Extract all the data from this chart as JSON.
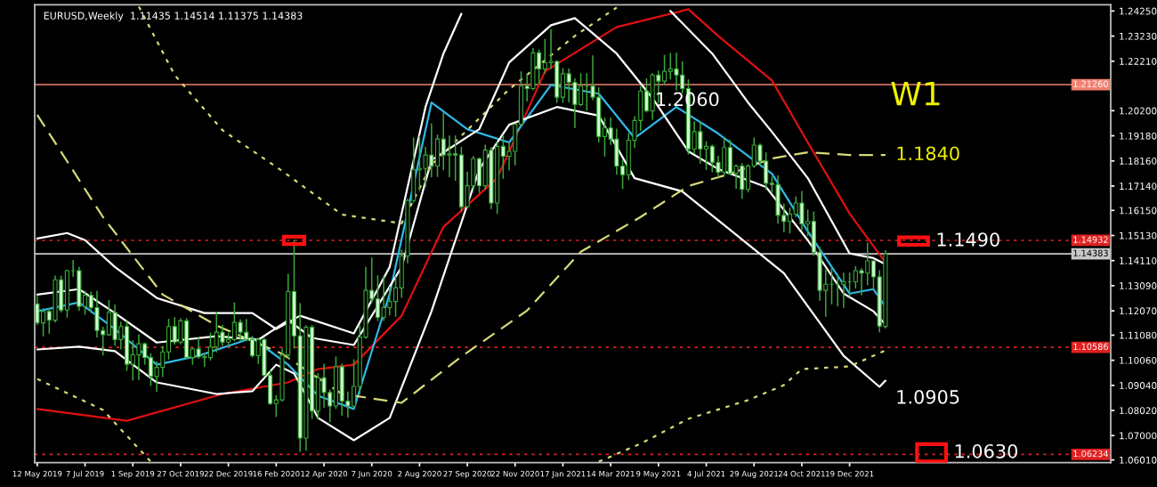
{
  "chart_data": {
    "type": "candlestick",
    "title": "EURUSD,Weekly  1.11435 1.14514 1.11375 1.14383",
    "colors": [
      "#ccffcc",
      "#000000",
      "#ccffcc",
      "#000000",
      "#ccffcc",
      "#000000",
      "#3aa63a",
      "#ccffcc",
      "#000000",
      "#ccffcc",
      "#ccffcc",
      "#ccffcc",
      "#000000",
      "#ccffcc",
      "#000000",
      "#ccffcc",
      "#000000",
      "#000000",
      "#ccffcc",
      "#ccffcc",
      "#000000",
      "#000000",
      "#000000",
      "#ccffcc",
      "#000000",
      "#ccffcc",
      "#000000",
      "#ccffcc",
      "#ccffcc",
      "#000000",
      "#000000",
      "#ccffcc",
      "#000000",
      "#000000",
      "#ccffcc",
      "#ccffcc",
      "#ccffcc",
      "#000000",
      "#ccffcc",
      "#ccffcc",
      "#000000",
      "#000000",
      "#000000",
      "#ccffcc",
      "#ccffcc",
      "#000000",
      "#ccffcc",
      "#000000",
      "#ccffcc",
      "#ccffcc",
      "#000000",
      "#ccffcc",
      "#ccffcc",
      "#000000",
      "#000000",
      "#000000",
      "#ccffcc",
      "#ccffcc",
      "#000000",
      "#000000",
      "#000000",
      "#000000",
      "#000000",
      "#000000",
      "#000000",
      "#000000",
      "#ccffcc",
      "#000000",
      "#ccffcc",
      "#000000",
      "#ccffcc",
      "#ccffcc",
      "#000000",
      "#000000",
      "#ccffcc",
      "#000000",
      "#ccffcc",
      "#000000",
      "#ccffcc",
      "#000000",
      "#000000",
      "#000000",
      "#ccffcc",
      "#000000",
      "#ccffcc",
      "#000000",
      "#000000",
      "#ccffcc",
      "#000000",
      "#ccffcc",
      "#ccffcc",
      "#000000",
      "#3aa63a",
      "#ccffcc",
      "#ccffcc",
      "#000000",
      "#ccffcc",
      "#ccffcc",
      "#ccffcc",
      "#000000",
      "#000000",
      "#000000",
      "#ccffcc",
      "#000000",
      "#ccffcc",
      "#000000",
      "#000000",
      "#ccffcc",
      "#ccffcc",
      "#ccffcc",
      "#000000",
      "#ccffcc",
      "#000000",
      "#ccffcc",
      "#ccffcc",
      "#000000",
      "#ccffcc",
      "#000000",
      "#ccffcc",
      "#000000",
      "#000000",
      "#ccffcc",
      "#ccffcc",
      "#ccffcc",
      "#ccffcc",
      "#ccffcc",
      "#000000",
      "#000000",
      "#ccffcc",
      "#000000",
      "#ccffcc",
      "#ccffcc",
      "#000000",
      "#3aa63a",
      "#3aa63a",
      "#000000",
      "#3aa63a",
      "#000000",
      "#ccffcc",
      "#000000",
      "#ccffcc",
      "#ccffcc",
      "#000000"
    ],
    "x": [
      "2019-05-12",
      "2019-05-19",
      "2019-05-26",
      "2019-06-02",
      "2019-06-09",
      "2019-06-16",
      "2019-06-23",
      "2019-06-30",
      "2019-07-07",
      "2019-07-14",
      "2019-07-21",
      "2019-07-28",
      "2019-08-04",
      "2019-08-11",
      "2019-08-18",
      "2019-08-25",
      "2019-09-01",
      "2019-09-08",
      "2019-09-15",
      "2019-09-22",
      "2019-09-29",
      "2019-10-06",
      "2019-10-13",
      "2019-10-20",
      "2019-10-27",
      "2019-11-03",
      "2019-11-10",
      "2019-11-17",
      "2019-11-24",
      "2019-12-01",
      "2019-12-08",
      "2019-12-15",
      "2019-12-22",
      "2019-12-29",
      "2020-01-05",
      "2020-01-12",
      "2020-01-19",
      "2020-01-26",
      "2020-02-02",
      "2020-02-09",
      "2020-02-16",
      "2020-02-23",
      "2020-03-01",
      "2020-03-08",
      "2020-03-15",
      "2020-03-22",
      "2020-03-29",
      "2020-04-05",
      "2020-04-12",
      "2020-04-19",
      "2020-04-26",
      "2020-05-03",
      "2020-05-10",
      "2020-05-17",
      "2020-05-24",
      "2020-05-31",
      "2020-06-07",
      "2020-06-14",
      "2020-06-21",
      "2020-06-28",
      "2020-07-05",
      "2020-07-12",
      "2020-07-19",
      "2020-07-26",
      "2020-08-02",
      "2020-08-09",
      "2020-08-16",
      "2020-08-23",
      "2020-08-30",
      "2020-09-06",
      "2020-09-13",
      "2020-09-20",
      "2020-09-27",
      "2020-10-04",
      "2020-10-11",
      "2020-10-18",
      "2020-10-25",
      "2020-11-01",
      "2020-11-08",
      "2020-11-15",
      "2020-11-22",
      "2020-11-29",
      "2020-12-06",
      "2020-12-13",
      "2020-12-20",
      "2020-12-27",
      "2021-01-03",
      "2021-01-10",
      "2021-01-17",
      "2021-01-24",
      "2021-01-31",
      "2021-02-07",
      "2021-02-14",
      "2021-02-21",
      "2021-02-28",
      "2021-03-07",
      "2021-03-14",
      "2021-03-21",
      "2021-03-28",
      "2021-04-04",
      "2021-04-11",
      "2021-04-18",
      "2021-04-25",
      "2021-05-02",
      "2021-05-09",
      "2021-05-16",
      "2021-05-23",
      "2021-05-30",
      "2021-06-06",
      "2021-06-13",
      "2021-06-20",
      "2021-06-27",
      "2021-07-04",
      "2021-07-11",
      "2021-07-18",
      "2021-07-25",
      "2021-08-01",
      "2021-08-08",
      "2021-08-15",
      "2021-08-22",
      "2021-08-29",
      "2021-09-05",
      "2021-09-12",
      "2021-09-19",
      "2021-09-26",
      "2021-10-03",
      "2021-10-10",
      "2021-10-17",
      "2021-10-24",
      "2021-10-31",
      "2021-11-07",
      "2021-11-14",
      "2021-11-21",
      "2021-11-28",
      "2021-12-05",
      "2021-12-12",
      "2021-12-19",
      "2021-12-26",
      "2022-01-02",
      "2022-01-09",
      "2022-01-16",
      "2022-01-23",
      "2022-01-30"
    ],
    "ohlc": [
      [
        1.1235,
        1.1265,
        1.115,
        1.1158
      ],
      [
        1.1158,
        1.1215,
        1.1105,
        1.1204
      ],
      [
        1.1204,
        1.1215,
        1.1116,
        1.1169
      ],
      [
        1.1169,
        1.1348,
        1.1161,
        1.1333
      ],
      [
        1.1333,
        1.1347,
        1.1202,
        1.121
      ],
      [
        1.121,
        1.1372,
        1.1181,
        1.137
      ],
      [
        1.137,
        1.1412,
        1.1347,
        1.137
      ],
      [
        1.137,
        1.1384,
        1.1208,
        1.1225
      ],
      [
        1.1225,
        1.1286,
        1.1193,
        1.127
      ],
      [
        1.127,
        1.1282,
        1.12,
        1.122
      ],
      [
        1.122,
        1.1286,
        1.1101,
        1.1127
      ],
      [
        1.1127,
        1.114,
        1.1027,
        1.111
      ],
      [
        1.111,
        1.1249,
        1.1107,
        1.12
      ],
      [
        1.12,
        1.123,
        1.1066,
        1.109
      ],
      [
        1.109,
        1.116,
        1.1052,
        1.1143
      ],
      [
        1.1143,
        1.1164,
        1.0965,
        1.099
      ],
      [
        1.099,
        1.1085,
        1.0926,
        1.1028
      ],
      [
        1.1028,
        1.1109,
        1.0927,
        1.1073
      ],
      [
        1.1073,
        1.1075,
        1.099,
        1.1017
      ],
      [
        1.1017,
        1.1032,
        1.0904,
        1.094
      ],
      [
        1.094,
        1.0999,
        1.0879,
        1.0977
      ],
      [
        1.0977,
        1.1062,
        1.094,
        1.104
      ],
      [
        1.104,
        1.1172,
        1.1011,
        1.1143
      ],
      [
        1.1143,
        1.1179,
        1.1072,
        1.108
      ],
      [
        1.108,
        1.1175,
        1.1073,
        1.1166
      ],
      [
        1.1166,
        1.1176,
        1.1014,
        1.1017
      ],
      [
        1.1017,
        1.1055,
        1.0989,
        1.1052
      ],
      [
        1.1052,
        1.1097,
        1.1015,
        1.102
      ],
      [
        1.102,
        1.1032,
        1.0981,
        1.1017
      ],
      [
        1.1017,
        1.1117,
        1.1007,
        1.106
      ],
      [
        1.106,
        1.12,
        1.104,
        1.112
      ],
      [
        1.112,
        1.1148,
        1.1066,
        1.108
      ],
      [
        1.108,
        1.1115,
        1.1064,
        1.109
      ],
      [
        1.109,
        1.1239,
        1.1085,
        1.116
      ],
      [
        1.116,
        1.117,
        1.1085,
        1.112
      ],
      [
        1.112,
        1.1172,
        1.1086,
        1.109
      ],
      [
        1.109,
        1.1102,
        1.1019,
        1.1025
      ],
      [
        1.1025,
        1.1096,
        1.0992,
        1.109
      ],
      [
        1.109,
        1.1095,
        1.0942,
        1.0945
      ],
      [
        1.0945,
        1.0964,
        1.0827,
        1.083
      ],
      [
        1.083,
        1.0863,
        1.0778,
        1.0845
      ],
      [
        1.0845,
        1.1053,
        1.084,
        1.1027
      ],
      [
        1.1027,
        1.1355,
        1.1014,
        1.1285
      ],
      [
        1.1285,
        1.1493,
        1.1055,
        1.1105
      ],
      [
        1.1105,
        1.1236,
        1.0636,
        1.069
      ],
      [
        1.069,
        1.1147,
        1.064,
        1.114
      ],
      [
        1.114,
        1.1147,
        1.077,
        1.08
      ],
      [
        1.08,
        1.0952,
        1.0768,
        1.0935
      ],
      [
        1.0935,
        1.099,
        1.0815,
        1.0875
      ],
      [
        1.0875,
        1.0885,
        1.0756,
        1.082
      ],
      [
        1.082,
        1.1019,
        1.081,
        1.098
      ],
      [
        1.098,
        1.099,
        1.0782,
        1.084
      ],
      [
        1.084,
        1.0877,
        1.0775,
        1.082
      ],
      [
        1.082,
        1.1008,
        1.0812,
        1.09
      ],
      [
        1.09,
        1.1146,
        1.087,
        1.11
      ],
      [
        1.11,
        1.1384,
        1.1095,
        1.129
      ],
      [
        1.129,
        1.1422,
        1.124,
        1.1255
      ],
      [
        1.1255,
        1.1349,
        1.1168,
        1.118
      ],
      [
        1.118,
        1.1349,
        1.1168,
        1.122
      ],
      [
        1.122,
        1.1303,
        1.119,
        1.1245
      ],
      [
        1.1245,
        1.1345,
        1.1185,
        1.13
      ],
      [
        1.13,
        1.1452,
        1.1262,
        1.143
      ],
      [
        1.143,
        1.166,
        1.1402,
        1.1655
      ],
      [
        1.1655,
        1.1909,
        1.1649,
        1.178
      ],
      [
        1.178,
        1.1916,
        1.1696,
        1.1785
      ],
      [
        1.1785,
        1.1871,
        1.1711,
        1.184
      ],
      [
        1.184,
        1.1966,
        1.1752,
        1.1795
      ],
      [
        1.1795,
        1.1921,
        1.1753,
        1.1905
      ],
      [
        1.1905,
        1.2011,
        1.178,
        1.184
      ],
      [
        1.184,
        1.1917,
        1.1752,
        1.1845
      ],
      [
        1.1845,
        1.1917,
        1.1737,
        1.184
      ],
      [
        1.184,
        1.1871,
        1.1612,
        1.163
      ],
      [
        1.163,
        1.177,
        1.1625,
        1.1715
      ],
      [
        1.1715,
        1.1834,
        1.1697,
        1.1825
      ],
      [
        1.1825,
        1.1828,
        1.1688,
        1.1715
      ],
      [
        1.1715,
        1.188,
        1.17,
        1.186
      ],
      [
        1.186,
        1.187,
        1.1622,
        1.1645
      ],
      [
        1.1645,
        1.1891,
        1.1603,
        1.1875
      ],
      [
        1.1875,
        1.192,
        1.1745,
        1.1835
      ],
      [
        1.1835,
        1.189,
        1.178,
        1.1855
      ],
      [
        1.1855,
        1.1965,
        1.18,
        1.1965
      ],
      [
        1.1965,
        1.2178,
        1.196,
        1.212
      ],
      [
        1.212,
        1.2168,
        1.2059,
        1.211
      ],
      [
        1.211,
        1.2273,
        1.2105,
        1.2255
      ],
      [
        1.2255,
        1.2265,
        1.213,
        1.219
      ],
      [
        1.219,
        1.231,
        1.2172,
        1.2215
      ],
      [
        1.2215,
        1.2349,
        1.2191,
        1.222
      ],
      [
        1.222,
        1.2223,
        1.2054,
        1.2075
      ],
      [
        1.2075,
        1.219,
        1.2055,
        1.217
      ],
      [
        1.217,
        1.2189,
        1.2056,
        1.2135
      ],
      [
        1.2135,
        1.215,
        1.1952,
        1.2045
      ],
      [
        1.2045,
        1.217,
        1.204,
        1.212
      ],
      [
        1.212,
        1.217,
        1.2022,
        1.212
      ],
      [
        1.212,
        1.2243,
        1.2065,
        1.2075
      ],
      [
        1.2075,
        1.2113,
        1.1893,
        1.1915
      ],
      [
        1.1915,
        1.199,
        1.1836,
        1.195
      ],
      [
        1.195,
        1.199,
        1.1883,
        1.1905
      ],
      [
        1.1905,
        1.1945,
        1.1762,
        1.1795
      ],
      [
        1.1795,
        1.182,
        1.1704,
        1.176
      ],
      [
        1.176,
        1.1927,
        1.174,
        1.19
      ],
      [
        1.19,
        1.1995,
        1.187,
        1.198
      ],
      [
        1.198,
        1.2117,
        1.194,
        1.21
      ],
      [
        1.21,
        1.215,
        1.2015,
        1.202
      ],
      [
        1.202,
        1.217,
        1.1985,
        1.2165
      ],
      [
        1.2165,
        1.2181,
        1.2052,
        1.214
      ],
      [
        1.214,
        1.2245,
        1.213,
        1.218
      ],
      [
        1.218,
        1.2253,
        1.215,
        1.219
      ],
      [
        1.219,
        1.2254,
        1.2104,
        1.2165
      ],
      [
        1.2165,
        1.2218,
        1.2093,
        1.211
      ],
      [
        1.211,
        1.2145,
        1.1844,
        1.1865
      ],
      [
        1.1865,
        1.1975,
        1.1847,
        1.1935
      ],
      [
        1.1935,
        1.1975,
        1.1807,
        1.1865
      ],
      [
        1.1865,
        1.1895,
        1.1782,
        1.1875
      ],
      [
        1.1875,
        1.188,
        1.1772,
        1.181
      ],
      [
        1.181,
        1.1835,
        1.1752,
        1.177
      ],
      [
        1.177,
        1.1909,
        1.1755,
        1.187
      ],
      [
        1.187,
        1.19,
        1.176,
        1.1765
      ],
      [
        1.1765,
        1.18,
        1.1705,
        1.1795
      ],
      [
        1.1795,
        1.1805,
        1.1664,
        1.17
      ],
      [
        1.17,
        1.18,
        1.169,
        1.1795
      ],
      [
        1.1795,
        1.1909,
        1.179,
        1.188
      ],
      [
        1.188,
        1.1885,
        1.18,
        1.1815
      ],
      [
        1.1815,
        1.1848,
        1.17,
        1.1725
      ],
      [
        1.1725,
        1.175,
        1.1685,
        1.172
      ],
      [
        1.172,
        1.1755,
        1.1563,
        1.1595
      ],
      [
        1.1595,
        1.164,
        1.1529,
        1.157
      ],
      [
        1.157,
        1.1624,
        1.1523,
        1.16
      ],
      [
        1.16,
        1.1669,
        1.159,
        1.1645
      ],
      [
        1.1645,
        1.1692,
        1.1535,
        1.156
      ],
      [
        1.156,
        1.1616,
        1.1513,
        1.157
      ],
      [
        1.157,
        1.1608,
        1.1432,
        1.1445
      ],
      [
        1.1445,
        1.1465,
        1.125,
        1.129
      ],
      [
        1.129,
        1.1374,
        1.1185,
        1.1315
      ],
      [
        1.1315,
        1.1383,
        1.1235,
        1.1315
      ],
      [
        1.1315,
        1.1355,
        1.1227,
        1.1315
      ],
      [
        1.1315,
        1.136,
        1.1221,
        1.1325
      ],
      [
        1.1325,
        1.136,
        1.1265,
        1.1325
      ],
      [
        1.1325,
        1.1386,
        1.13,
        1.137
      ],
      [
        1.137,
        1.1378,
        1.1272,
        1.136
      ],
      [
        1.136,
        1.1483,
        1.1313,
        1.141
      ],
      [
        1.141,
        1.141,
        1.129,
        1.1345
      ],
      [
        1.1345,
        1.137,
        1.1121,
        1.1145
      ],
      [
        1.11435,
        1.14514,
        1.11375,
        1.14383
      ]
    ],
    "series": [
      {
        "type": "line",
        "color": "#e01010",
        "line_style": "solid",
        "x": [
          "2019-05-12",
          "2019-08-25",
          "2019-12-15",
          "2020-03-01",
          "2020-04-05",
          "2020-05-17",
          "2020-07-12",
          "2020-08-30",
          "2020-11-01",
          "2020-12-27",
          "2021-03-21",
          "2021-06-13",
          "2021-07-18",
          "2021-09-19",
          "2021-10-31",
          "2021-12-19",
          "2022-01-30"
        ],
        "values": [
          1.0808,
          1.076,
          1.0869,
          1.0916,
          1.097,
          1.0988,
          1.1187,
          1.1548,
          1.1746,
          1.218,
          1.236,
          1.2432,
          1.2324,
          1.2143,
          1.1891,
          1.1602,
          1.1403
        ]
      },
      {
        "type": "line",
        "color": "#30b8e8",
        "line_style": "solid",
        "x": [
          "2019-05-12",
          "2019-06-30",
          "2019-08-11",
          "2019-09-29",
          "2019-11-17",
          "2020-01-19",
          "2020-03-01",
          "2020-04-05",
          "2020-05-17",
          "2020-06-28",
          "2020-08-16",
          "2020-09-27",
          "2020-11-15",
          "2021-01-03",
          "2021-02-28",
          "2021-04-11",
          "2021-05-30",
          "2021-07-18",
          "2021-09-19",
          "2021-10-31",
          "2021-12-19",
          "2022-01-16",
          "2022-01-30"
        ],
        "values": [
          1.1205,
          1.1241,
          1.1133,
          1.0988,
          1.1024,
          1.1097,
          1.0988,
          1.0862,
          1.0808,
          1.1277,
          1.2053,
          1.1945,
          1.1891,
          1.2125,
          1.2089,
          1.1909,
          1.2035,
          1.1927,
          1.1764,
          1.153,
          1.1277,
          1.1295,
          1.1223
        ]
      },
      {
        "type": "line",
        "color": "#ffffff",
        "line_style": "solid",
        "x": [
          "2019-05-12",
          "2019-06-16",
          "2019-07-07",
          "2019-08-11",
          "2019-09-29",
          "2019-11-24",
          "2020-01-19",
          "2020-02-16",
          "2020-03-15",
          "2020-05-17",
          "2020-06-28",
          "2020-08-09",
          "2020-08-30",
          "2020-09-20",
          "2020-12-27",
          "2021-05-23",
          "2021-07-11",
          "2021-08-22",
          "2021-09-19",
          "2021-10-31",
          "2021-12-19",
          "2022-01-16",
          "2022-01-30"
        ],
        "values": [
          1.1501,
          1.1523,
          1.1494,
          1.1385,
          1.1259,
          1.1198,
          1.1198,
          1.1133,
          1.1187,
          1.1115,
          1.1385,
          1.2035,
          1.2252,
          1.2414,
          null,
          1.2425,
          1.2252,
          1.2053,
          1.1934,
          1.1746,
          1.144,
          1.1421,
          1.1396
        ]
      },
      {
        "type": "line",
        "color": "#ffffff",
        "line_style": "solid",
        "x": [
          "2019-05-12",
          "2019-06-30",
          "2019-08-11",
          "2019-09-29",
          "2019-12-08",
          "2020-01-26",
          "2020-03-01",
          "2020-03-29",
          "2020-05-17",
          "2020-07-12",
          "2020-08-16",
          "2020-10-11",
          "2020-11-15",
          "2021-01-03",
          "2021-01-31",
          "2021-03-21",
          "2021-05-02",
          "2021-06-13",
          "2021-07-18",
          "2021-09-12",
          "2021-10-31",
          "2021-12-12",
          "2022-01-16",
          "2022-01-30"
        ],
        "values": [
          1.1273,
          1.1295,
          1.1198,
          1.1078,
          1.1104,
          1.1089,
          1.1169,
          1.1097,
          1.1068,
          1.1385,
          1.1819,
          1.1945,
          1.2216,
          1.2367,
          1.2396,
          1.2252,
          1.2071,
          1.1855,
          1.1783,
          1.171,
          1.1494,
          1.1277,
          1.1205,
          1.1151
        ]
      },
      {
        "type": "line",
        "color": "#ffffff",
        "line_style": "solid",
        "x": [
          "2019-05-12",
          "2019-06-30",
          "2019-08-11",
          "2019-09-29",
          "2019-12-08",
          "2020-01-19",
          "2020-02-16",
          "2020-03-08",
          "2020-04-05",
          "2020-05-17",
          "2020-06-28",
          "2020-08-16",
          "2020-10-11",
          "2020-11-15",
          "2021-01-10",
          "2021-02-28",
          "2021-04-11",
          "2021-06-06",
          "2021-10-03",
          "2021-12-12",
          "2022-01-23",
          "2022-01-30"
        ],
        "values": [
          1.105,
          1.1061,
          1.1043,
          1.0916,
          1.0869,
          1.088,
          1.0988,
          1.0952,
          1.0772,
          1.0681,
          1.0772,
          1.1205,
          1.1782,
          1.1963,
          1.2035,
          1.2,
          1.1746,
          1.1692,
          1.136,
          1.1024,
          1.0898,
          1.0923
        ]
      },
      {
        "type": "line",
        "color": "#d8d878",
        "line_style": "dashed",
        "x": [
          "2019-05-12",
          "2019-07-28",
          "2019-10-06",
          "2019-12-08",
          "2020-02-23",
          "2020-05-03",
          "2020-07-12",
          "2020-09-20",
          "2020-12-06",
          "2021-02-07",
          "2021-04-18",
          "2021-06-13",
          "2021-08-01",
          "2021-09-19",
          "2021-10-31",
          "2021-12-19",
          "2022-01-30"
        ],
        "values": [
          1.2003,
          1.1588,
          1.1273,
          1.1147,
          1.1032,
          1.0869,
          1.0833,
          1.1021,
          1.1208,
          1.1447,
          1.1588,
          1.1714,
          1.1764,
          1.1826,
          1.1851,
          1.184,
          1.184
        ]
      },
      {
        "type": "line",
        "color": "#d8d878",
        "line_style": "dotted",
        "x": [
          "2019-09-08",
          "2019-10-20",
          "2019-12-15",
          "2020-02-23",
          "2020-05-03",
          "2020-07-12",
          "2020-08-16",
          "2020-11-15",
          "2021-01-31",
          "2021-03-21"
        ],
        "values": [
          1.2443,
          1.2165,
          1.1941,
          1.1775,
          1.1598,
          1.1562,
          1.18,
          1.2107,
          1.2324,
          1.2439
        ]
      },
      {
        "type": "line",
        "color": "#d8d878",
        "line_style": "dotted",
        "x": [
          "2019-05-12",
          "2019-07-28",
          "2019-09-22",
          "2020-05-17",
          "2021-02-28",
          "2021-04-18",
          "2021-06-13",
          "2021-08-22",
          "2021-10-03",
          "2021-10-24",
          "2021-12-19",
          "2022-01-30"
        ],
        "values": [
          1.093,
          1.0804,
          1.0594,
          null,
          1.0594,
          1.0667,
          1.0768,
          1.0844,
          1.0905,
          1.097,
          1.0981,
          1.1046
        ]
      }
    ],
    "xlim": [
      "2019-05-09",
      "2022-10-21"
    ],
    "ylim": [
      1.059,
      1.245
    ],
    "xticks": [
      {
        "value": "2019-05-12",
        "label": "12 May 2019"
      },
      {
        "value": "2019-07-07",
        "label": "7 Jul 2019"
      },
      {
        "value": "2019-09-01",
        "label": "1 Sep 2019"
      },
      {
        "value": "2019-10-27",
        "label": "27 Oct 2019"
      },
      {
        "value": "2019-12-22",
        "label": "22 Dec 2019"
      },
      {
        "value": "2020-02-16",
        "label": "16 Feb 2020"
      },
      {
        "value": "2020-04-12",
        "label": "12 Apr 2020"
      },
      {
        "value": "2020-06-07",
        "label": "7 Jun 2020"
      },
      {
        "value": "2020-08-02",
        "label": "2 Aug 2020"
      },
      {
        "value": "2020-09-27",
        "label": "27 Sep 2020"
      },
      {
        "value": "2020-11-22",
        "label": "22 Nov 2020"
      },
      {
        "value": "2021-01-17",
        "label": "17 Jan 2021"
      },
      {
        "value": "2021-03-14",
        "label": "14 Mar 2021"
      },
      {
        "value": "2021-05-09",
        "label": "9 May 2021"
      },
      {
        "value": "2021-07-04",
        "label": "4 Jul 2021"
      },
      {
        "value": "2021-08-29",
        "label": "29 Aug 2021"
      },
      {
        "value": "2021-10-24",
        "label": "24 Oct 2021"
      },
      {
        "value": "2021-12-19",
        "label": "19 Dec 2021"
      }
    ],
    "yticks": [
      {
        "value": 1.2425,
        "label": "1.24250"
      },
      {
        "value": 1.2323,
        "label": "1.23230"
      },
      {
        "value": 1.2221,
        "label": "1.22210"
      },
      {
        "value": 1.202,
        "label": "1.20200"
      },
      {
        "value": 1.1918,
        "label": "1.19180"
      },
      {
        "value": 1.1816,
        "label": "1.18160"
      },
      {
        "value": 1.1714,
        "label": "1.17140"
      },
      {
        "value": 1.1615,
        "label": "1.16150"
      },
      {
        "value": 1.1513,
        "label": "1.15130"
      },
      {
        "value": 1.1411,
        "label": "1.14110"
      },
      {
        "value": 1.1309,
        "label": "1.13090"
      },
      {
        "value": 1.1207,
        "label": "1.12070"
      },
      {
        "value": 1.1108,
        "label": "1.11080"
      },
      {
        "value": 1.1006,
        "label": "1.10060"
      },
      {
        "value": 1.0904,
        "label": "1.09040"
      },
      {
        "value": 1.0802,
        "label": "1.08020"
      },
      {
        "value": 1.07,
        "label": "1.07000"
      },
      {
        "value": 1.0601,
        "label": "1.06010"
      }
    ],
    "ref_lines": [
      {
        "axis": "y",
        "value": 1.2126,
        "label": "1.21260",
        "color": "#f08070",
        "line_style": "solid"
      },
      {
        "axis": "y",
        "value": 1.14932,
        "label": "1.14932",
        "color": "#e02020",
        "line_style": "dotted"
      },
      {
        "axis": "y",
        "value": 1.14383,
        "label": "1.14383",
        "color": "#c8c8c8",
        "line_style": "solid"
      },
      {
        "axis": "y",
        "value": 1.10586,
        "label": "1.10586",
        "color": "#e02020",
        "line_style": "dotted"
      },
      {
        "axis": "y",
        "value": 1.06234,
        "label": "1.06234",
        "color": "#e02020",
        "line_style": "dotted"
      }
    ],
    "annotations": [
      "W1",
      {
        "text": "1.2060",
        "x": "2021-05-02",
        "y": 1.206
      },
      "1.1840",
      {
        "text": "1.1490",
        "x": "2022-03-27",
        "y": 1.149
      },
      "1.0905",
      {
        "text": "1.0630",
        "x": "2022-04-17",
        "y": 1.063
      }
    ]
  }
}
